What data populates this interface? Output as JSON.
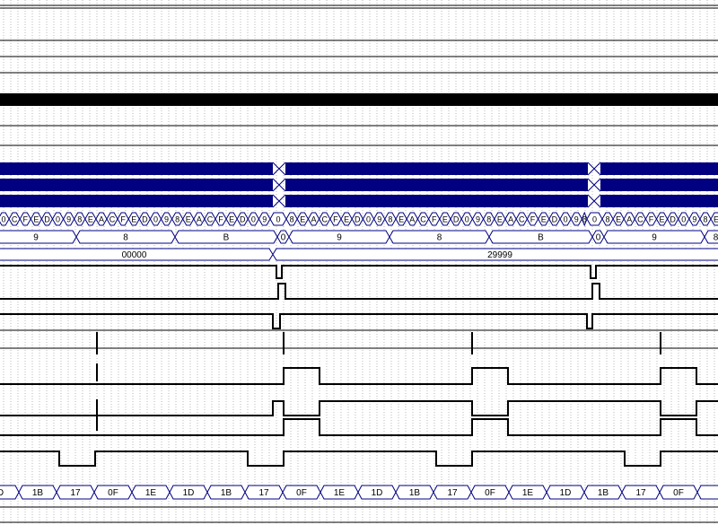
{
  "rows": {
    "hex_dense": [
      "0",
      "C",
      "F",
      "E",
      "D",
      "0",
      "9",
      "8",
      "E",
      "A",
      "C",
      "F",
      "E",
      "D",
      "0",
      "9",
      "8",
      "E",
      "A",
      "C",
      "F",
      "E",
      "D",
      "0",
      "9",
      "0",
      "8",
      "E",
      "A",
      "C",
      "F",
      "E",
      "D",
      "0",
      "9",
      "8",
      "E",
      "A",
      "C",
      "F",
      "E",
      "D",
      "0",
      "9",
      "8",
      "E",
      "A",
      "C",
      "F",
      "E",
      "D",
      "0",
      "9",
      "8",
      "0",
      "8",
      "E",
      "A",
      "C",
      "F",
      "E",
      "D",
      "0",
      "9",
      "8",
      "E"
    ],
    "nibble_bus": [
      "9",
      "8",
      "B",
      "0",
      "9",
      "8",
      "B",
      "0",
      "9",
      "8"
    ],
    "count_bus": [
      "00000",
      "29999"
    ],
    "byte_bus": [
      "D",
      "1B",
      "17",
      "0F",
      "1E",
      "1D",
      "1B",
      "17",
      "0F",
      "1E",
      "1D",
      "1B",
      "17",
      "0F",
      "1E",
      "1D",
      "1B",
      "17",
      "0F"
    ]
  }
}
